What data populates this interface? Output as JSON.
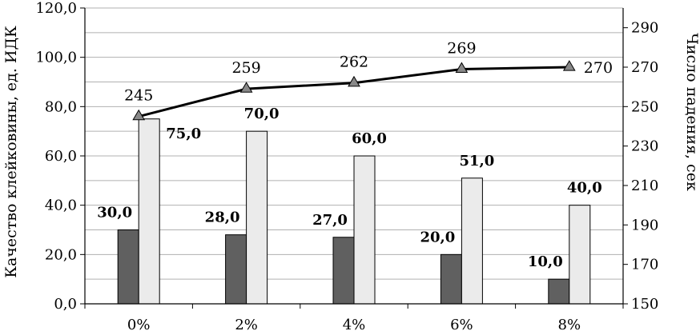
{
  "chart_data": {
    "type": "bar",
    "title": "",
    "xlabel": "",
    "ylabel": "Качество клейковины, ед. ИДК",
    "y2label": "Число падения, сек",
    "categories": [
      "0%",
      "2%",
      "4%",
      "6%",
      "8%"
    ],
    "ylim": [
      0,
      120
    ],
    "y_ticks": [
      "0,0",
      "20,0",
      "40,0",
      "60,0",
      "80,0",
      "100,0",
      "120,0"
    ],
    "y2lim": [
      150,
      300
    ],
    "y2_ticks": [
      "150",
      "170",
      "190",
      "210",
      "230",
      "250",
      "270",
      "290"
    ],
    "grid": true,
    "legend": "none",
    "series": [
      {
        "type": "bar",
        "axis": "left",
        "color": "#606060",
        "values": [
          30.0,
          28.0,
          27.0,
          20.0,
          10.0
        ],
        "labels": [
          "30,0",
          "28,0",
          "27,0",
          "20,0",
          "10,0"
        ]
      },
      {
        "type": "bar",
        "axis": "left",
        "color": "#ebebeb",
        "values": [
          75.0,
          70.0,
          60.0,
          51.0,
          40.0
        ],
        "labels": [
          "75,0",
          "70,0",
          "60,0",
          "51,0",
          "40,0"
        ]
      },
      {
        "type": "line",
        "axis": "right",
        "color": "#000000",
        "marker": "triangle",
        "marker_color": "#888888",
        "values": [
          245,
          259,
          262,
          269,
          270
        ],
        "labels": [
          "245",
          "259",
          "262",
          "269",
          "270"
        ]
      }
    ]
  }
}
